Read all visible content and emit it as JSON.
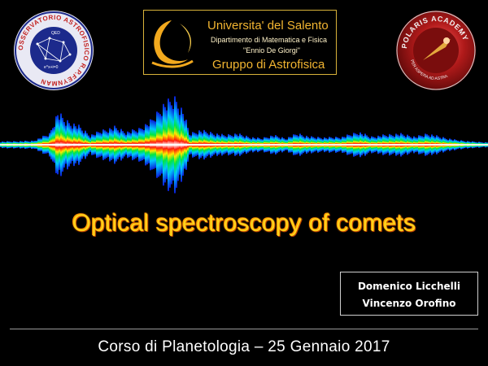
{
  "logo_left": {
    "ring_text": "OSSERVATORIO ASTROFISICO R.P.FEYNMAN",
    "inner_text": "QED",
    "equation": "e^x+i=0"
  },
  "banner": {
    "university": "Universita' del Salento",
    "department": "Dipartimento di Matematica e Fisica",
    "institute": "\"Ennio De Giorgi\"",
    "group": "Gruppo di Astrofisica"
  },
  "logo_right": {
    "ring_text": "POLARIS ACADEMY",
    "motto": "PER ASPERA AD ASTRA"
  },
  "title": "Optical spectroscopy of comets",
  "authors": [
    "Domenico Licchelli",
    "Vincenzo Orofino"
  ],
  "footer": "Corso di Planetologia – 25 Gennaio 2017",
  "colors": {
    "title": "#ffd21a",
    "title_glow": "#ff7a00",
    "banner_border": "#d9b23a",
    "banner_text": "#f2b531",
    "background": "#000000"
  }
}
